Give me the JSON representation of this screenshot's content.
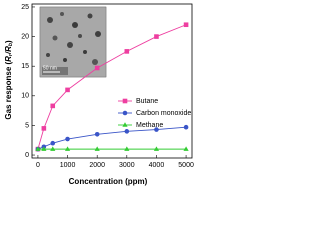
{
  "chart_data": {
    "type": "line",
    "x_label": "Concentration (ppm)",
    "y_label_parts": [
      "Gas response (",
      "R",
      "r",
      "/",
      "R",
      "b",
      ")"
    ],
    "inset_scale_label": "50 nm",
    "xlim": [
      -200,
      5200
    ],
    "xticks": [
      0,
      1000,
      2000,
      3000,
      4000,
      5000
    ],
    "ylim": [
      -0.5,
      25.5
    ],
    "yticks": [
      0,
      5,
      10,
      15,
      20,
      25
    ],
    "legend": "center right",
    "series": [
      {
        "name": "Butane",
        "color": "#ee3ea0",
        "marker": "square",
        "x": [
          0,
          200,
          500,
          1000,
          2000,
          3000,
          4000,
          5000
        ],
        "values": [
          1,
          4.5,
          8.3,
          11,
          14.7,
          17.5,
          20,
          22
        ]
      },
      {
        "name": "Carbon monoxide",
        "color": "#3a55c8",
        "marker": "circle",
        "x": [
          0,
          200,
          500,
          1000,
          2000,
          3000,
          4000,
          5000
        ],
        "values": [
          1,
          1.4,
          2,
          2.7,
          3.5,
          4,
          4.3,
          4.7
        ]
      },
      {
        "name": "Methane",
        "color": "#33cc33",
        "marker": "triangle",
        "x": [
          0,
          200,
          500,
          1000,
          2000,
          3000,
          4000,
          5000
        ],
        "values": [
          1,
          1,
          1,
          1,
          1,
          1,
          1,
          1
        ]
      }
    ]
  }
}
